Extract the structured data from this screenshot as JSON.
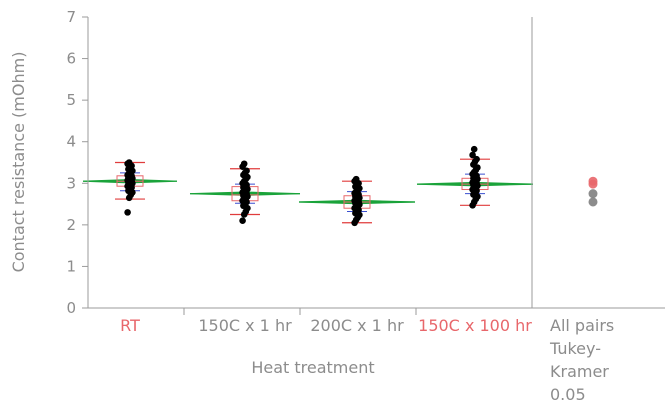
{
  "chart_data": {
    "type": "scatter",
    "xlabel": "Heat treatment",
    "ylabel": "Contact resistance (mOhm)",
    "ylim": [
      0,
      7
    ],
    "yticks": [
      "0",
      "1",
      "2",
      "3",
      "4",
      "5",
      "6",
      "7"
    ],
    "categories": [
      "RT",
      "150C x 1 hr",
      "200C x 1 hr",
      "150C x 100 hr"
    ],
    "category_colors": [
      "#e8676b",
      "#8c8c8c",
      "#8c8c8c",
      "#e8676b"
    ],
    "groups": [
      {
        "mean": 3.05,
        "q1": 2.93,
        "median": 3.05,
        "q3": 3.18,
        "whisker_low": 2.62,
        "whisker_high": 3.5,
        "sd_low": 2.82,
        "sd_high": 3.25,
        "points": [
          2.3,
          2.65,
          2.72,
          2.78,
          2.82,
          2.86,
          2.9,
          2.93,
          2.96,
          2.98,
          3.0,
          3.02,
          3.04,
          3.05,
          3.07,
          3.09,
          3.1,
          3.12,
          3.14,
          3.16,
          3.18,
          3.2,
          3.23,
          3.26,
          3.3,
          3.34,
          3.38,
          3.42,
          3.47,
          3.5
        ]
      },
      {
        "mean": 2.75,
        "q1": 2.58,
        "median": 2.72,
        "q3": 2.92,
        "whisker_low": 2.25,
        "whisker_high": 3.35,
        "sd_low": 2.52,
        "sd_high": 2.98,
        "points": [
          2.1,
          2.25,
          2.32,
          2.4,
          2.46,
          2.5,
          2.55,
          2.58,
          2.62,
          2.65,
          2.68,
          2.7,
          2.72,
          2.75,
          2.78,
          2.8,
          2.83,
          2.86,
          2.9,
          2.93,
          2.96,
          3.0,
          3.05,
          3.1,
          3.15,
          3.2,
          3.25,
          3.3,
          3.4,
          3.47
        ]
      },
      {
        "mean": 2.55,
        "q1": 2.4,
        "median": 2.55,
        "q3": 2.7,
        "whisker_low": 2.05,
        "whisker_high": 3.05,
        "sd_low": 2.32,
        "sd_high": 2.8,
        "points": [
          2.05,
          2.12,
          2.18,
          2.24,
          2.28,
          2.32,
          2.36,
          2.4,
          2.43,
          2.46,
          2.49,
          2.52,
          2.54,
          2.56,
          2.58,
          2.6,
          2.62,
          2.65,
          2.68,
          2.7,
          2.73,
          2.76,
          2.8,
          2.84,
          2.88,
          2.92,
          2.96,
          3.0,
          3.05,
          3.1
        ]
      },
      {
        "mean": 2.98,
        "q1": 2.85,
        "median": 2.98,
        "q3": 3.12,
        "whisker_low": 2.47,
        "whisker_high": 3.58,
        "sd_low": 2.75,
        "sd_high": 3.22,
        "points": [
          2.47,
          2.55,
          2.62,
          2.68,
          2.73,
          2.78,
          2.82,
          2.85,
          2.88,
          2.91,
          2.94,
          2.96,
          2.98,
          3.0,
          3.02,
          3.04,
          3.07,
          3.1,
          3.12,
          3.15,
          3.18,
          3.22,
          3.27,
          3.32,
          3.38,
          3.45,
          3.52,
          3.58,
          3.68,
          3.82
        ]
      }
    ],
    "side_panel": {
      "label_lines": [
        "All pairs",
        "Tukey-",
        "Kramer",
        "0.05"
      ],
      "circles": [
        {
          "value": 3.05,
          "color": "#e8676b"
        },
        {
          "value": 2.98,
          "color": "#e8676b"
        },
        {
          "value": 2.75,
          "color": "#808080"
        },
        {
          "value": 2.55,
          "color": "#808080"
        }
      ]
    },
    "grid": false,
    "legend": "none",
    "colors": {
      "axis": "#9b9b9b",
      "point": "#000000",
      "box": "#e8676b",
      "whisker": "#e03c3c",
      "sd": "#3a4fd0",
      "mean_diamond": "#1aa33a"
    }
  }
}
